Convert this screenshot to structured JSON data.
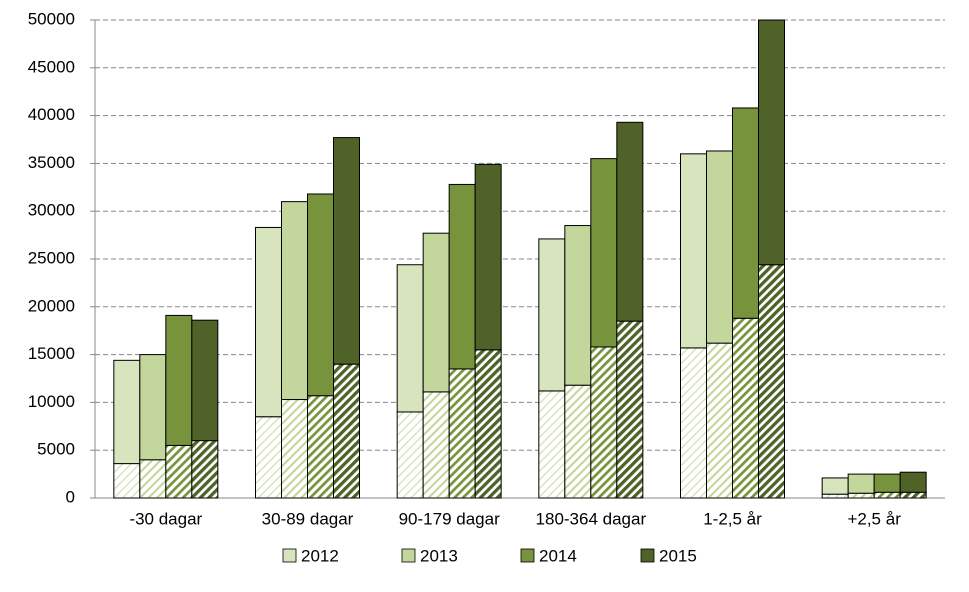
{
  "chart_data": {
    "type": "stacked-grouped-bar",
    "categories": [
      "-30 dagar",
      "30-89 dagar",
      "90-179 dagar",
      "180-364 dagar",
      "1-2,5 år",
      "+2,5 år"
    ],
    "series": [
      {
        "name": "2012",
        "color": "#d7e4bd",
        "hatched_values": [
          3600,
          8500,
          9000,
          11200,
          15700,
          400
        ],
        "solid_values": [
          10800,
          19800,
          15400,
          15900,
          20300,
          1700
        ]
      },
      {
        "name": "2013",
        "color": "#c3d69b",
        "hatched_values": [
          4000,
          10300,
          11100,
          11800,
          16200,
          500
        ],
        "solid_values": [
          11000,
          20700,
          16600,
          16700,
          20100,
          2000
        ]
      },
      {
        "name": "2014",
        "color": "#77933c",
        "hatched_values": [
          5500,
          10700,
          13500,
          15800,
          18800,
          600
        ],
        "solid_values": [
          13600,
          21100,
          19300,
          19700,
          22000,
          1900
        ]
      },
      {
        "name": "2015",
        "color": "#4f6228",
        "hatched_values": [
          6000,
          14000,
          15500,
          18500,
          24400,
          600
        ],
        "solid_values": [
          12600,
          23700,
          19400,
          20800,
          25600,
          2100
        ]
      }
    ],
    "ylim": [
      0,
      50000
    ],
    "yticks": [
      0,
      5000,
      10000,
      15000,
      20000,
      25000,
      30000,
      35000,
      40000,
      45000,
      50000
    ],
    "grid": true,
    "legend": "bottom"
  }
}
